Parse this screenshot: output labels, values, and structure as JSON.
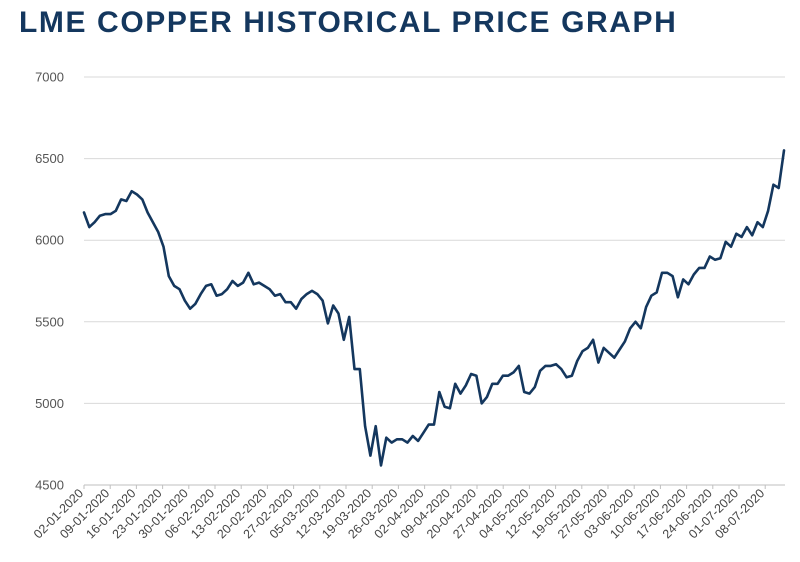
{
  "chart_data": {
    "type": "line",
    "title": "LME COPPER HISTORICAL PRICE GRAPH",
    "xlabel": "",
    "ylabel": "",
    "ylim": [
      4500,
      7000
    ],
    "yticks": [
      4500,
      5000,
      5500,
      6000,
      6500,
      7000
    ],
    "grid": true,
    "legend": "none",
    "line_color": "#14375e",
    "xtick_labels": [
      "02-01-2020",
      "09-01-2020",
      "16-01-2020",
      "23-01-2020",
      "30-01-2020",
      "06-02-2020",
      "13-02-2020",
      "20-02-2020",
      "27-02-2020",
      "05-03-2020",
      "12-03-2020",
      "19-03-2020",
      "26-03-2020",
      "02-04-2020",
      "09-04-2020",
      "20-04-2020",
      "27-04-2020",
      "04-05-2020",
      "12-05-2020",
      "19-05-2020",
      "27-05-2020",
      "03-06-2020",
      "10-06-2020",
      "17-06-2020",
      "24-06-2020",
      "01-07-2020",
      "08-07-2020"
    ],
    "series": [
      {
        "values": [
          6170,
          6080,
          6110,
          6150,
          6160,
          6160,
          6180,
          6250,
          6240,
          6300,
          6280,
          6250,
          6170,
          6110,
          6050,
          5960,
          5780,
          5720,
          5700,
          5630,
          5580,
          5610,
          5670,
          5720,
          5730,
          5660,
          5670,
          5700,
          5750,
          5720,
          5740,
          5800,
          5730,
          5740,
          5720,
          5700,
          5660,
          5670,
          5620,
          5620,
          5580,
          5640,
          5670,
          5690,
          5670,
          5630,
          5490,
          5600,
          5550,
          5390,
          5530,
          5210,
          5210,
          4860,
          4680,
          4860,
          4620,
          4790,
          4760,
          4780,
          4780,
          4760,
          4800,
          4770,
          4820,
          4870,
          4870,
          5070,
          4980,
          4970,
          5120,
          5060,
          5110,
          5180,
          5170,
          5000,
          5040,
          5120,
          5120,
          5170,
          5170,
          5190,
          5230,
          5070,
          5060,
          5100,
          5200,
          5230,
          5230,
          5240,
          5210,
          5160,
          5170,
          5260,
          5320,
          5340,
          5390,
          5250,
          5340,
          5310,
          5280,
          5330,
          5380,
          5460,
          5500,
          5460,
          5590,
          5660,
          5680,
          5800,
          5800,
          5780,
          5650,
          5760,
          5730,
          5790,
          5830,
          5830,
          5900,
          5880,
          5890,
          5990,
          5960,
          6040,
          6020,
          6080,
          6030,
          6110,
          6080,
          6180,
          6340,
          6320,
          6550
        ]
      }
    ]
  }
}
